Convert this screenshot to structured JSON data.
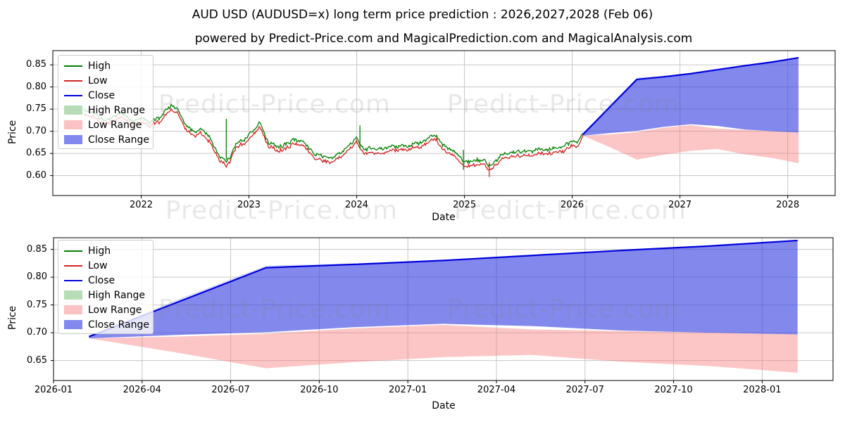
{
  "title": "AUD USD (AUDUSD=x) long term price prediction : 2026,2027,2028 (Feb 06)",
  "subtitle": "powered by Predict-Price.com and MagicalPrediction.com and MagicalAnalysis.com",
  "watermark": "Predict-Price.com",
  "colors": {
    "high": "#008000",
    "low": "#d62222",
    "close": "#0000dd",
    "close_range_fill": "rgba(55,65,225,0.62)",
    "low_range_fill": "rgba(250,118,120,0.42)",
    "upper_wedge_fill": "rgba(140,150,242,0.30)",
    "high_range_swatch": "#b7ddb7",
    "low_range_swatch": "#fbc1c3",
    "close_range_swatch": "#8289ee",
    "grid": "#c6c6c6",
    "frame": "#000000"
  },
  "legend": {
    "entries": [
      {
        "label": "High",
        "kind": "line",
        "color": "#008000"
      },
      {
        "label": "Low",
        "kind": "line",
        "color": "#d62222"
      },
      {
        "label": "Close",
        "kind": "line",
        "color": "#0000dd"
      },
      {
        "label": "High Range",
        "kind": "patch",
        "color": "#b7ddb7"
      },
      {
        "label": "Low Range",
        "kind": "patch",
        "color": "#fbc1c3"
      },
      {
        "label": "Close Range",
        "kind": "patch",
        "color": "#8289ee"
      }
    ]
  },
  "chart_data": [
    {
      "type": "line",
      "name": "long-term-history-and-prediction",
      "xlabel": "Date",
      "ylabel": "Price",
      "xlim": [
        2021.18,
        2028.44
      ],
      "ylim": [
        0.555,
        0.882
      ],
      "grid": true,
      "x_ticks": {
        "values": [
          2022,
          2023,
          2024,
          2025,
          2026,
          2027,
          2028
        ],
        "labels": [
          "2022",
          "2023",
          "2024",
          "2025",
          "2026",
          "2027",
          "2028"
        ]
      },
      "y_ticks": {
        "values": [
          0.6,
          0.65,
          0.7,
          0.75,
          0.8,
          0.85
        ],
        "labels": [
          "0.60",
          "0.65",
          "0.70",
          "0.75",
          "0.80",
          "0.85"
        ]
      },
      "historical": {
        "description": "daily High (green) and Low (red) lines, mid keypoints in decimal years",
        "x": [
          2021.47,
          2021.58,
          2021.66,
          2021.75,
          2021.83,
          2021.92,
          2022.0,
          2022.08,
          2022.17,
          2022.27,
          2022.33,
          2022.42,
          2022.49,
          2022.55,
          2022.63,
          2022.71,
          2022.79,
          2022.83,
          2022.88,
          2022.96,
          2023.04,
          2023.1,
          2023.18,
          2023.28,
          2023.36,
          2023.44,
          2023.52,
          2023.6,
          2023.68,
          2023.77,
          2023.85,
          2023.93,
          2024.0,
          2024.08,
          2024.17,
          2024.25,
          2024.33,
          2024.42,
          2024.5,
          2024.58,
          2024.67,
          2024.74,
          2024.83,
          2024.92,
          2025.0,
          2025.08,
          2025.16,
          2025.24,
          2025.33,
          2025.42,
          2025.5,
          2025.58,
          2025.66,
          2025.74,
          2025.83,
          2025.91,
          2025.99,
          2026.04,
          2026.08,
          2026.1
        ],
        "y_mid": [
          0.745,
          0.733,
          0.713,
          0.727,
          0.738,
          0.713,
          0.722,
          0.712,
          0.722,
          0.751,
          0.742,
          0.705,
          0.695,
          0.7,
          0.685,
          0.648,
          0.625,
          0.64,
          0.668,
          0.675,
          0.695,
          0.712,
          0.668,
          0.662,
          0.668,
          0.678,
          0.665,
          0.645,
          0.641,
          0.633,
          0.645,
          0.662,
          0.68,
          0.652,
          0.65,
          0.655,
          0.66,
          0.662,
          0.666,
          0.672,
          0.68,
          0.689,
          0.663,
          0.645,
          0.623,
          0.625,
          0.632,
          0.615,
          0.64,
          0.645,
          0.653,
          0.648,
          0.655,
          0.652,
          0.658,
          0.662,
          0.668,
          0.672,
          0.682,
          0.693
        ],
        "high_offset": 0.0035,
        "low_offset": 0.0035,
        "noise_amplitude": 0.008,
        "step": 0.008,
        "spikes": [
          {
            "x": 2022.79,
            "y1": 0.635,
            "y2": 0.728,
            "series": "high"
          },
          {
            "x": 2024.03,
            "y1": 0.66,
            "y2": 0.713,
            "series": "high"
          },
          {
            "x": 2024.99,
            "y1": 0.613,
            "y2": 0.658,
            "series": "high"
          },
          {
            "x": 2025.23,
            "y1": 0.597,
            "y2": 0.63,
            "series": "low"
          }
        ]
      },
      "prediction": {
        "x": [
          2026.1,
          2026.35,
          2026.6,
          2026.85,
          2027.1,
          2027.35,
          2027.6,
          2027.85,
          2028.1
        ],
        "close": [
          0.693,
          0.755,
          0.817,
          0.823,
          0.83,
          0.839,
          0.848,
          0.856,
          0.866
        ],
        "close_upper_wedge": [
          0.693,
          0.76,
          0.821,
          0.825,
          0.83,
          0.839,
          0.848,
          0.856,
          0.866
        ],
        "close_range_lower": [
          0.69,
          0.696,
          0.701,
          0.71,
          0.716,
          0.712,
          0.704,
          0.7,
          0.697
        ],
        "low_range_upper": [
          0.69,
          0.693,
          0.698,
          0.708,
          0.714,
          0.706,
          0.703,
          0.7,
          0.697
        ],
        "low_range_lower": [
          0.69,
          0.664,
          0.636,
          0.647,
          0.656,
          0.66,
          0.648,
          0.64,
          0.628
        ]
      }
    },
    {
      "type": "line",
      "name": "prediction-detail-2026-2028",
      "xlabel": "Date",
      "ylabel": "Price",
      "xlim": [
        2026.0,
        2028.2
      ],
      "ylim": [
        0.614,
        0.871
      ],
      "grid": true,
      "x_ticks": {
        "values": [
          2026.0,
          2026.25,
          2026.5,
          2026.75,
          2027.0,
          2027.25,
          2027.5,
          2027.75,
          2028.0
        ],
        "labels": [
          "2026-01",
          "2026-04",
          "2026-07",
          "2026-10",
          "2027-01",
          "2027-04",
          "2027-07",
          "2027-10",
          "2028-01"
        ]
      },
      "y_ticks": {
        "values": [
          0.65,
          0.7,
          0.75,
          0.8,
          0.85
        ],
        "labels": [
          "0.65",
          "0.70",
          "0.75",
          "0.80",
          "0.85"
        ]
      },
      "prediction": {
        "x": [
          2026.1,
          2026.35,
          2026.6,
          2026.85,
          2027.1,
          2027.35,
          2027.6,
          2027.85,
          2028.1
        ],
        "close": [
          0.693,
          0.755,
          0.817,
          0.823,
          0.83,
          0.839,
          0.848,
          0.856,
          0.866
        ],
        "close_upper_wedge": [
          0.693,
          0.76,
          0.821,
          0.825,
          0.83,
          0.839,
          0.848,
          0.856,
          0.866
        ],
        "close_range_lower": [
          0.69,
          0.696,
          0.701,
          0.71,
          0.716,
          0.712,
          0.704,
          0.7,
          0.697
        ],
        "low_range_upper": [
          0.69,
          0.693,
          0.698,
          0.708,
          0.714,
          0.706,
          0.703,
          0.7,
          0.697
        ],
        "low_range_lower": [
          0.69,
          0.664,
          0.636,
          0.647,
          0.656,
          0.66,
          0.648,
          0.64,
          0.628
        ]
      }
    }
  ]
}
